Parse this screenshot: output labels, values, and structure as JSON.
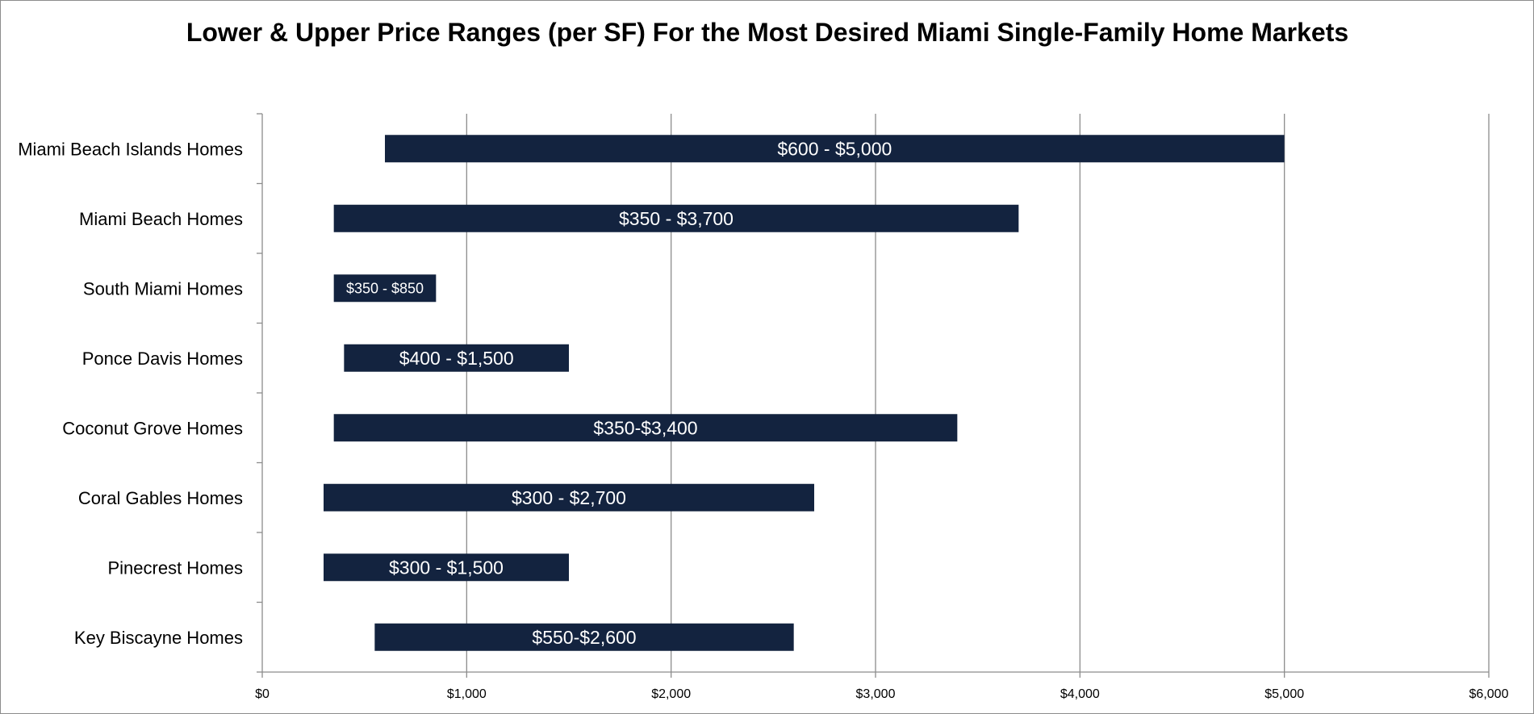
{
  "chart_data": {
    "type": "bar",
    "orientation": "horizontal",
    "stacked_range": true,
    "title": "Lower & Upper Price Ranges (per SF) For the Most Desired Miami Single-Family Home Markets",
    "xlabel": "",
    "ylabel": "",
    "xlim": [
      0,
      6000
    ],
    "x_ticks": [
      0,
      1000,
      2000,
      3000,
      4000,
      5000,
      6000
    ],
    "x_tick_labels": [
      "$0",
      "$1,000",
      "$2,000",
      "$3,000",
      "$4,000",
      "$5,000",
      "$6,000"
    ],
    "grid": "vertical",
    "legend": "none",
    "bar_color": "#13233f",
    "categories": [
      "Miami Beach Islands Homes",
      "Miami Beach Homes",
      "South Miami Homes",
      "Ponce Davis Homes",
      "Coconut Grove Homes",
      "Coral Gables Homes",
      "Pinecrest Homes",
      "Key Biscayne Homes"
    ],
    "low": [
      600,
      350,
      350,
      400,
      350,
      300,
      300,
      550
    ],
    "high": [
      5000,
      3700,
      850,
      1500,
      3400,
      2700,
      1500,
      2600
    ],
    "labels": [
      "$600 - $5,000",
      "$350 - $3,700",
      "$350 - $850",
      "$400 - $1,500",
      "$350-$3,400",
      "$300 - $2,700",
      "$300 - $1,500",
      "$550-$2,600"
    ]
  }
}
